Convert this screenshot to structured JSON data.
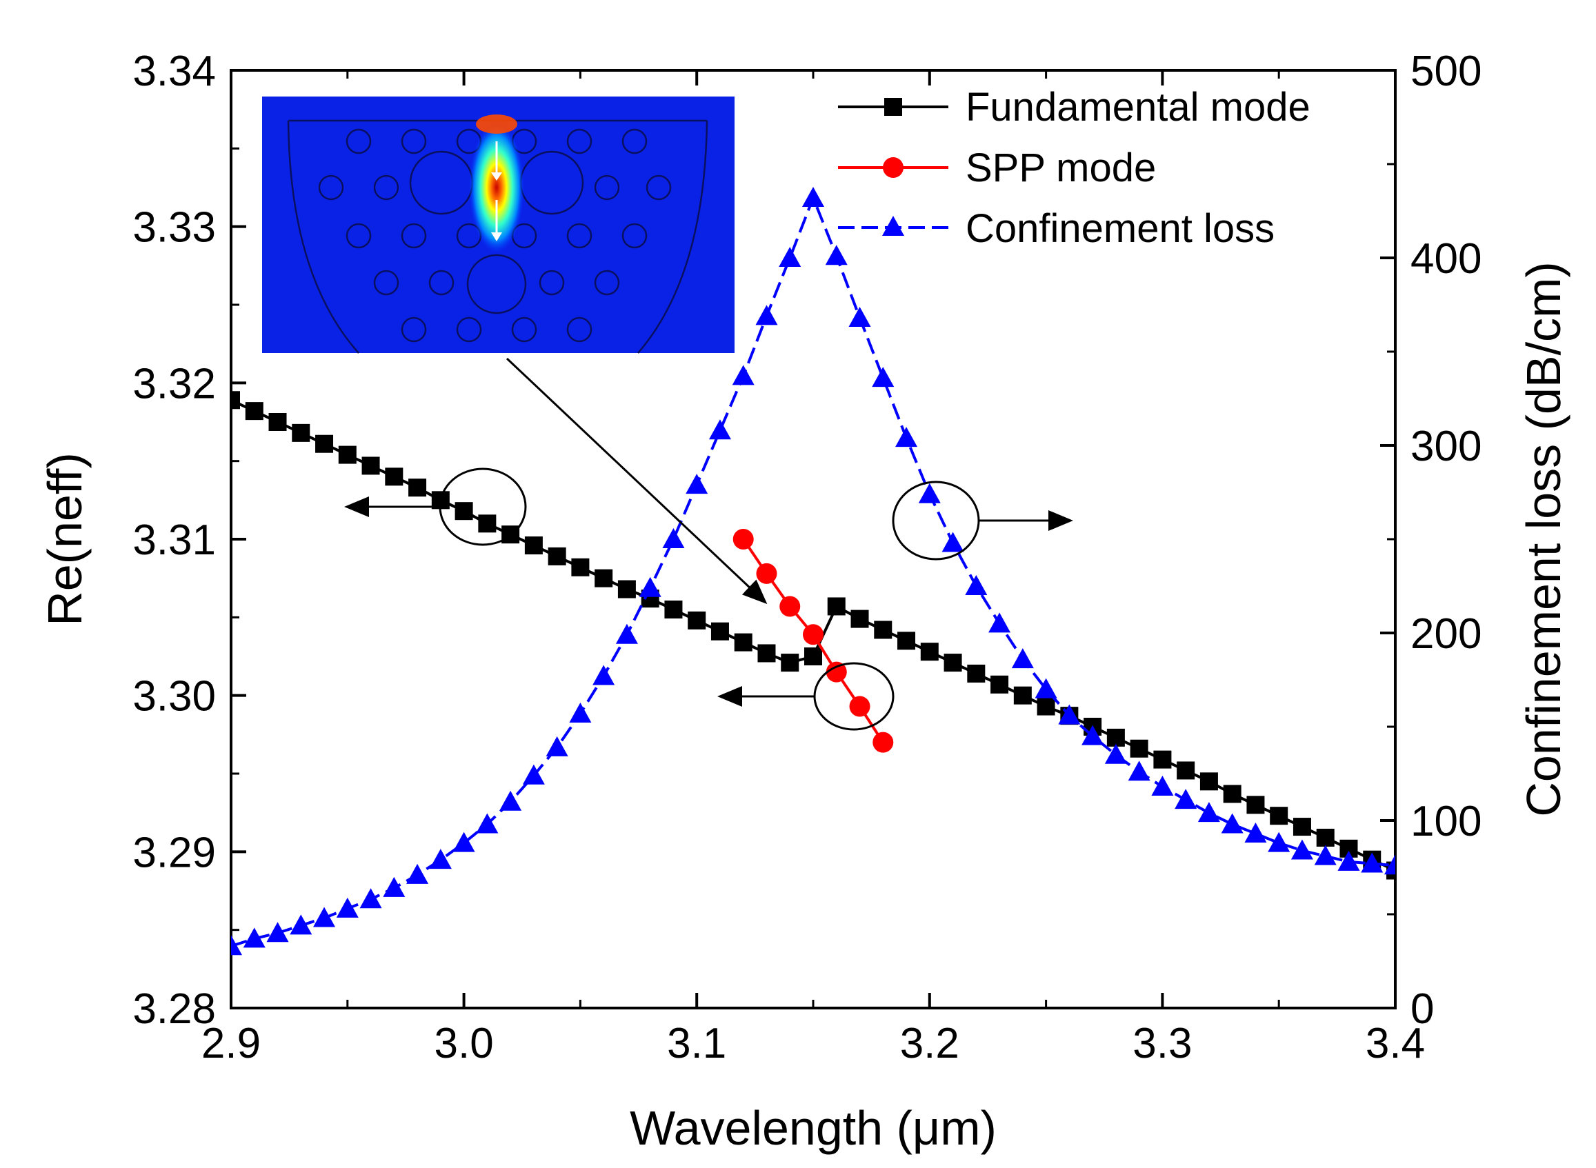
{
  "chart_data": {
    "type": "line",
    "title": "",
    "xlabel": "Wavelength (μm)",
    "ylabel_left": "Re(neff)",
    "ylabel_right": "Confinement loss (dB/cm)",
    "xlim": [
      2.9,
      3.4
    ],
    "ylim_left": [
      3.28,
      3.34
    ],
    "ylim_right": [
      0,
      500
    ],
    "xticks": [
      "2.9",
      "3.0",
      "3.1",
      "3.2",
      "3.3",
      "3.4"
    ],
    "yticks_left": [
      "3.28",
      "3.29",
      "3.30",
      "3.31",
      "3.32",
      "3.33",
      "3.34"
    ],
    "yticks_right": [
      "0",
      "100",
      "200",
      "300",
      "400",
      "500"
    ],
    "legend_position": "top-right",
    "grid": false,
    "series": [
      {
        "name": "Fundamental mode",
        "axis": "left",
        "color": "#000000",
        "marker": "square",
        "x": [
          2.9,
          2.91,
          2.92,
          2.93,
          2.94,
          2.95,
          2.96,
          2.97,
          2.98,
          2.99,
          3.0,
          3.01,
          3.02,
          3.03,
          3.04,
          3.05,
          3.06,
          3.07,
          3.08,
          3.09,
          3.1,
          3.11,
          3.12,
          3.13,
          3.14,
          3.15,
          3.16,
          3.17,
          3.18,
          3.19,
          3.2,
          3.21,
          3.22,
          3.23,
          3.24,
          3.25,
          3.26,
          3.27,
          3.28,
          3.29,
          3.3,
          3.31,
          3.32,
          3.33,
          3.34,
          3.35,
          3.36,
          3.37,
          3.38,
          3.39,
          3.4
        ],
        "y": [
          3.3189,
          3.3182,
          3.3175,
          3.3168,
          3.3161,
          3.3154,
          3.3147,
          3.314,
          3.3133,
          3.3125,
          3.3118,
          3.311,
          3.3103,
          3.3096,
          3.3089,
          3.3082,
          3.3075,
          3.3068,
          3.3062,
          3.3055,
          3.3048,
          3.3041,
          3.3034,
          3.3027,
          3.3021,
          3.3025,
          3.3057,
          3.3049,
          3.3042,
          3.3035,
          3.3028,
          3.3021,
          3.3014,
          3.3007,
          3.3,
          3.2993,
          3.2987,
          3.298,
          3.2973,
          3.2966,
          3.2959,
          3.2952,
          3.2945,
          3.2937,
          3.293,
          3.2923,
          3.2916,
          3.2909,
          3.2902,
          3.2895,
          3.2888
        ]
      },
      {
        "name": "SPP mode",
        "axis": "left",
        "color": "#ff0000",
        "marker": "circle",
        "x": [
          3.12,
          3.13,
          3.14,
          3.15,
          3.16,
          3.17,
          3.18
        ],
        "y": [
          3.31,
          3.3078,
          3.3057,
          3.3039,
          3.3015,
          3.2993,
          3.297
        ]
      },
      {
        "name": "Confinement loss",
        "axis": "right",
        "color": "#0000ff",
        "marker": "triangle",
        "dashed": true,
        "x": [
          2.9,
          2.91,
          2.92,
          2.93,
          2.94,
          2.95,
          2.96,
          2.97,
          2.98,
          2.99,
          3.0,
          3.01,
          3.02,
          3.03,
          3.04,
          3.05,
          3.06,
          3.07,
          3.08,
          3.09,
          3.1,
          3.11,
          3.12,
          3.13,
          3.14,
          3.15,
          3.16,
          3.17,
          3.18,
          3.19,
          3.2,
          3.21,
          3.22,
          3.23,
          3.24,
          3.25,
          3.26,
          3.27,
          3.28,
          3.29,
          3.3,
          3.31,
          3.32,
          3.33,
          3.34,
          3.35,
          3.36,
          3.37,
          3.38,
          3.39,
          3.4
        ],
        "y": [
          33,
          37,
          40,
          44,
          48,
          53,
          58,
          64,
          71,
          79,
          88,
          98,
          110,
          124,
          139,
          157,
          177,
          199,
          224,
          250,
          279,
          308,
          337,
          369,
          400,
          432,
          401,
          368,
          336,
          304,
          274,
          248,
          225,
          205,
          186,
          170,
          156,
          145,
          135,
          126,
          118,
          111,
          104,
          98,
          93,
          88,
          84,
          81,
          78,
          77,
          76
        ]
      }
    ],
    "annotations": {
      "left_arrow_labels": [
        "Fundamental mode circle",
        "SPP mode circle"
      ],
      "right_arrow_label": "Confinement loss circle",
      "inset": "mode field profile of the PCF cross-section"
    }
  }
}
